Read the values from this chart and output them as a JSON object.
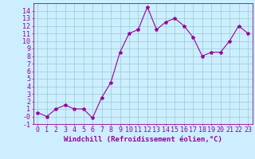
{
  "x": [
    0,
    1,
    2,
    3,
    4,
    5,
    6,
    7,
    8,
    9,
    10,
    11,
    12,
    13,
    14,
    15,
    16,
    17,
    18,
    19,
    20,
    21,
    22,
    23
  ],
  "y": [
    0.5,
    0.0,
    1.0,
    1.5,
    1.0,
    1.0,
    -0.2,
    2.5,
    4.5,
    8.5,
    11.0,
    11.5,
    14.5,
    11.5,
    12.5,
    13.0,
    12.0,
    10.5,
    8.0,
    8.5,
    8.5,
    10.0,
    12.0,
    11.0
  ],
  "line_color": "#990099",
  "marker": "*",
  "bg_color": "#cceeff",
  "grid_color": "#99cccc",
  "xlabel": "Windchill (Refroidissement éolien,°C)",
  "xlabel_color": "#990099",
  "tick_color": "#990099",
  "ylim": [
    -1,
    15
  ],
  "xlim": [
    -0.5,
    23.5
  ],
  "yticks": [
    -1,
    0,
    1,
    2,
    3,
    4,
    5,
    6,
    7,
    8,
    9,
    10,
    11,
    12,
    13,
    14
  ],
  "xticks": [
    0,
    1,
    2,
    3,
    4,
    5,
    6,
    7,
    8,
    9,
    10,
    11,
    12,
    13,
    14,
    15,
    16,
    17,
    18,
    19,
    20,
    21,
    22,
    23
  ],
  "ytick_labels": [
    "-1",
    "-0",
    "1",
    "2",
    "3",
    "4",
    "5",
    "6",
    "7",
    "8",
    "9",
    "10",
    "11",
    "12",
    "13",
    "14"
  ],
  "font_size": 6,
  "xlabel_fontsize": 6.5,
  "marker_size": 3,
  "linewidth": 0.8
}
